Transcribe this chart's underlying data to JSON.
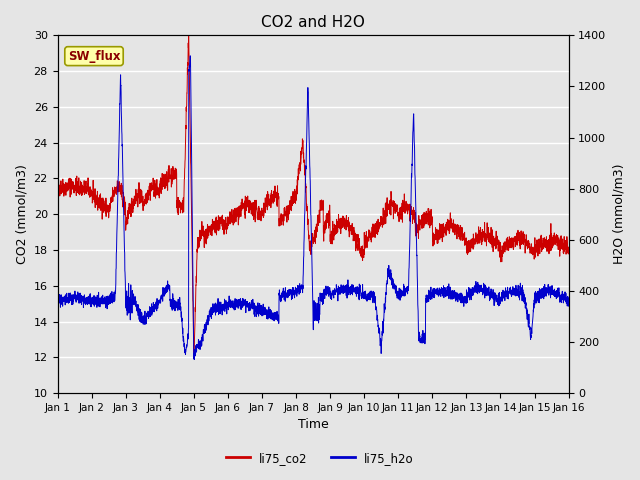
{
  "title": "CO2 and H2O",
  "xlabel": "Time",
  "ylabel_left": "CO2 (mmol/m3)",
  "ylabel_right": "H2O (mmol/m3)",
  "ylim_left": [
    10,
    30
  ],
  "ylim_right": [
    0,
    1400
  ],
  "yticks_left": [
    10,
    12,
    14,
    16,
    18,
    20,
    22,
    24,
    26,
    28,
    30
  ],
  "yticks_right": [
    0,
    200,
    400,
    600,
    800,
    1000,
    1200,
    1400
  ],
  "xtick_labels": [
    "Jan 1",
    "Jan 2",
    "Jan 3",
    "Jan 4",
    "Jan 5",
    "Jan 6",
    "Jan 7",
    "Jan 8",
    "Jan 9",
    "Jan 10",
    "Jan 11",
    "Jan 12",
    "Jan 13",
    "Jan 14",
    "Jan 15",
    "Jan 16"
  ],
  "color_co2": "#cc0000",
  "color_h2o": "#0000cc",
  "legend_label_co2": "li75_co2",
  "legend_label_h2o": "li75_h2o",
  "annotation_text": "SW_flux",
  "background_color": "#e5e5e5",
  "grid_color": "white",
  "title_fontsize": 11,
  "axis_fontsize": 9,
  "tick_fontsize": 8
}
